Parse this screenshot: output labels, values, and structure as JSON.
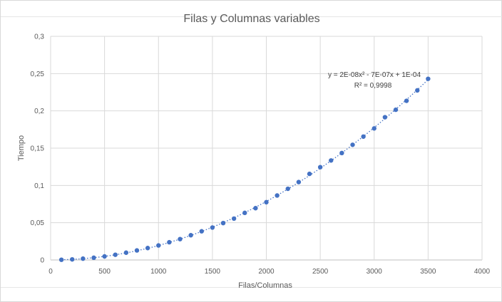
{
  "chart_data": {
    "type": "scatter",
    "title": "Filas y Columnas variables",
    "xlabel": "Filas/Columnas",
    "ylabel": "Tiempo",
    "xlim": [
      0,
      4000
    ],
    "ylim": [
      0,
      0.3
    ],
    "x_ticks": [
      "0",
      "500",
      "1000",
      "1500",
      "2000",
      "2500",
      "3000",
      "3500",
      "4000"
    ],
    "y_ticks": [
      "0",
      "0,05",
      "0,1",
      "0,15",
      "0,2",
      "0,25",
      "0,3"
    ],
    "grid": true,
    "legend": "none",
    "series_color": "#4472c4",
    "trendline": {
      "type": "polynomial-2",
      "style": "dotted",
      "equation": "y = 2E-08x² - 7E-07x + 1E-04",
      "r_squared": "R² = 0,9998"
    },
    "points": [
      [
        100,
        0.0003
      ],
      [
        200,
        0.0008
      ],
      [
        300,
        0.0018
      ],
      [
        400,
        0.003
      ],
      [
        500,
        0.0048
      ],
      [
        600,
        0.007
      ],
      [
        700,
        0.0098
      ],
      [
        800,
        0.0128
      ],
      [
        900,
        0.016
      ],
      [
        1000,
        0.0195
      ],
      [
        1100,
        0.0238
      ],
      [
        1200,
        0.028
      ],
      [
        1300,
        0.0332
      ],
      [
        1400,
        0.0385
      ],
      [
        1500,
        0.0435
      ],
      [
        1600,
        0.0495
      ],
      [
        1700,
        0.0555
      ],
      [
        1800,
        0.0632
      ],
      [
        1900,
        0.0695
      ],
      [
        2000,
        0.0775
      ],
      [
        2100,
        0.0865
      ],
      [
        2200,
        0.0955
      ],
      [
        2300,
        0.1045
      ],
      [
        2400,
        0.1155
      ],
      [
        2500,
        0.1245
      ],
      [
        2600,
        0.1335
      ],
      [
        2700,
        0.1435
      ],
      [
        2800,
        0.1545
      ],
      [
        2900,
        0.1655
      ],
      [
        3000,
        0.1765
      ],
      [
        3100,
        0.1915
      ],
      [
        3200,
        0.2015
      ],
      [
        3300,
        0.2135
      ],
      [
        3400,
        0.2275
      ],
      [
        3500,
        0.243
      ]
    ]
  }
}
